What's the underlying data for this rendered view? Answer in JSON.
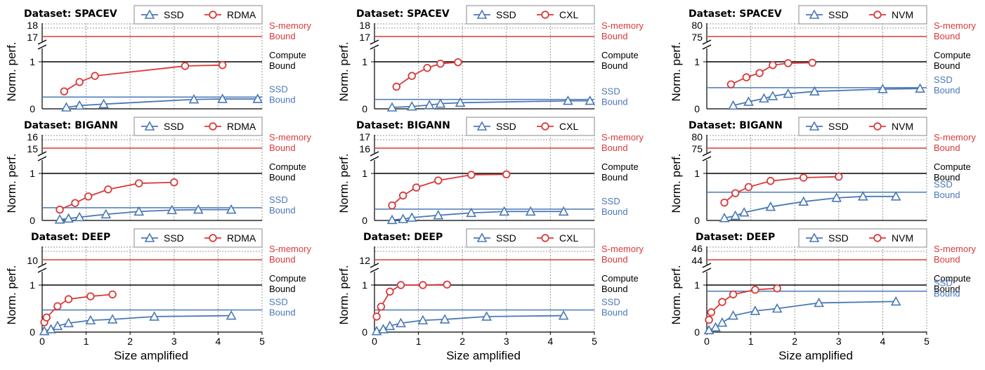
{
  "colors": {
    "ssd": "#4a78b8",
    "mem": "#d93a3a",
    "compute": "#000000",
    "grid": "#9a9a9a"
  },
  "figure": {
    "ylabel": "Norm. perf.",
    "xlabel": "Size amplified"
  },
  "chart_data": [
    {
      "type": "line",
      "title": "Dataset: SPACEV",
      "legend": [
        "SSD",
        "RDMA"
      ],
      "x_ticks": [
        "0",
        "1",
        "2",
        "3",
        "4",
        "5"
      ],
      "xlim": [
        0,
        5
      ],
      "ylim_lower": [
        0,
        1.15
      ],
      "y_ticks_lower": [
        "0",
        "1"
      ],
      "y_ticks_upper": [
        "17",
        "18"
      ],
      "s_memory_bound": 17,
      "s_memory_label": [
        "S-memory",
        "Bound"
      ],
      "compute_bound": 1,
      "compute_label": [
        "Compute",
        "Bound"
      ],
      "ssd_bound": 0.25,
      "ssd_label": [
        "SSD",
        "Bound"
      ],
      "series": [
        {
          "name": "SSD",
          "x": [
            0.55,
            0.85,
            1.4,
            3.45,
            4.1,
            4.9
          ],
          "y": [
            0.03,
            0.07,
            0.1,
            0.2,
            0.21,
            0.21
          ]
        },
        {
          "name": "RDMA",
          "x": [
            0.5,
            0.85,
            1.2,
            3.25,
            4.1
          ],
          "y": [
            0.37,
            0.57,
            0.7,
            0.91,
            0.93
          ]
        }
      ]
    },
    {
      "type": "line",
      "title": "Dataset: SPACEV",
      "legend": [
        "SSD",
        "CXL"
      ],
      "x_ticks": [
        "0",
        "1",
        "2",
        "3",
        "4",
        "5"
      ],
      "xlim": [
        0,
        5
      ],
      "ylim_lower": [
        0,
        1.15
      ],
      "y_ticks_lower": [
        "0",
        "1"
      ],
      "y_ticks_upper": [
        "17",
        "18"
      ],
      "s_memory_bound": 17,
      "s_memory_label": [
        "S-memory",
        "Bound"
      ],
      "compute_bound": 1,
      "compute_label": [
        "Compute",
        "Bound"
      ],
      "ssd_bound": 0.2,
      "ssd_label": [
        "SSD",
        "Bound"
      ],
      "series": [
        {
          "name": "SSD",
          "x": [
            0.4,
            0.85,
            1.25,
            1.5,
            1.95,
            4.4,
            4.9
          ],
          "y": [
            0.03,
            0.05,
            0.08,
            0.11,
            0.13,
            0.17,
            0.17
          ]
        },
        {
          "name": "CXL",
          "x": [
            0.5,
            0.85,
            1.2,
            1.5,
            1.9
          ],
          "y": [
            0.47,
            0.7,
            0.87,
            0.96,
            0.99
          ]
        }
      ]
    },
    {
      "type": "line",
      "title": "Dataset: SPACEV",
      "legend": [
        "SSD",
        "NVM"
      ],
      "x_ticks": [
        "0",
        "1",
        "2",
        "3",
        "4",
        "5"
      ],
      "xlim": [
        0,
        5
      ],
      "ylim_lower": [
        0,
        1.15
      ],
      "y_ticks_lower": [
        "0",
        "1"
      ],
      "y_ticks_upper": [
        "75",
        "80"
      ],
      "s_memory_bound": 75,
      "s_memory_label": [
        "S-memory",
        "Bound"
      ],
      "compute_bound": 1,
      "compute_label": [
        "Compute",
        "Bound"
      ],
      "ssd_bound": 0.45,
      "ssd_label": [
        "SSD",
        "Bound"
      ],
      "series": [
        {
          "name": "SSD",
          "x": [
            0.6,
            0.95,
            1.3,
            1.5,
            1.85,
            2.45,
            4.0,
            4.85
          ],
          "y": [
            0.07,
            0.15,
            0.22,
            0.27,
            0.32,
            0.37,
            0.42,
            0.43
          ]
        },
        {
          "name": "NVM",
          "x": [
            0.55,
            0.9,
            1.2,
            1.5,
            1.85,
            2.4
          ],
          "y": [
            0.52,
            0.67,
            0.76,
            0.93,
            0.97,
            0.98
          ]
        }
      ]
    },
    {
      "type": "line",
      "title": "Dataset: BIGANN",
      "legend": [
        "SSD",
        "RDMA"
      ],
      "x_ticks": [
        "0",
        "1",
        "2",
        "3",
        "4",
        "5"
      ],
      "xlim": [
        0,
        5
      ],
      "ylim_lower": [
        0,
        1.15
      ],
      "y_ticks_lower": [
        "0",
        "1"
      ],
      "y_ticks_upper": [
        "15",
        "16"
      ],
      "s_memory_bound": 15,
      "s_memory_label": [
        "S-memory",
        "Bound"
      ],
      "compute_bound": 1,
      "compute_label": [
        "Compute",
        "Bound"
      ],
      "ssd_bound": 0.27,
      "ssd_label": [
        "SSD",
        "Bound"
      ],
      "series": [
        {
          "name": "SSD",
          "x": [
            0.4,
            0.6,
            0.85,
            1.45,
            2.2,
            2.95,
            3.55,
            4.3
          ],
          "y": [
            0.02,
            0.04,
            0.07,
            0.13,
            0.19,
            0.22,
            0.23,
            0.23
          ]
        },
        {
          "name": "RDMA",
          "x": [
            0.4,
            0.75,
            1.05,
            1.5,
            2.2,
            3.0
          ],
          "y": [
            0.23,
            0.37,
            0.51,
            0.66,
            0.79,
            0.81
          ]
        }
      ]
    },
    {
      "type": "line",
      "title": "Dataset: BIGANN",
      "legend": [
        "SSD",
        "CXL"
      ],
      "x_ticks": [
        "0",
        "1",
        "2",
        "3",
        "4",
        "5"
      ],
      "xlim": [
        0,
        5
      ],
      "ylim_lower": [
        0,
        1.15
      ],
      "y_ticks_lower": [
        "0",
        "1"
      ],
      "y_ticks_upper": [
        "16",
        "17"
      ],
      "s_memory_bound": 16,
      "s_memory_label": [
        "S-memory",
        "Bound"
      ],
      "compute_bound": 1,
      "compute_label": [
        "Compute",
        "Bound"
      ],
      "ssd_bound": 0.24,
      "ssd_label": [
        "SSD",
        "Bound"
      ],
      "series": [
        {
          "name": "SSD",
          "x": [
            0.4,
            0.65,
            0.85,
            1.45,
            2.2,
            2.95,
            3.55,
            4.3
          ],
          "y": [
            0.01,
            0.03,
            0.06,
            0.11,
            0.16,
            0.19,
            0.19,
            0.19
          ]
        },
        {
          "name": "CXL",
          "x": [
            0.4,
            0.65,
            0.95,
            1.45,
            2.2,
            3.0
          ],
          "y": [
            0.32,
            0.53,
            0.7,
            0.85,
            0.97,
            0.98
          ]
        }
      ]
    },
    {
      "type": "line",
      "title": "Dataset: BIGANN",
      "legend": [
        "SSD",
        "NVM"
      ],
      "x_ticks": [
        "0",
        "1",
        "2",
        "3",
        "4",
        "5"
      ],
      "xlim": [
        0,
        5
      ],
      "ylim_lower": [
        0,
        1.15
      ],
      "y_ticks_lower": [
        "0",
        "1"
      ],
      "y_ticks_upper": [
        "75",
        "80"
      ],
      "s_memory_bound": 75,
      "s_memory_label": [
        "S-memory",
        "Bound"
      ],
      "compute_bound": 1,
      "compute_label": [
        "Compute",
        "Bound"
      ],
      "ssd_bound": 0.6,
      "ssd_label": [
        "SSD",
        "Bound"
      ],
      "series": [
        {
          "name": "SSD",
          "x": [
            0.4,
            0.65,
            0.85,
            1.45,
            2.2,
            2.95,
            3.55,
            4.3
          ],
          "y": [
            0.05,
            0.1,
            0.17,
            0.29,
            0.4,
            0.48,
            0.51,
            0.51
          ]
        },
        {
          "name": "NVM",
          "x": [
            0.4,
            0.65,
            0.95,
            1.45,
            2.2,
            3.0
          ],
          "y": [
            0.38,
            0.58,
            0.71,
            0.84,
            0.91,
            0.93
          ]
        }
      ]
    },
    {
      "type": "line",
      "title": "Dataset: DEEP",
      "legend": [
        "SSD",
        "RDMA"
      ],
      "x_ticks": [
        "0",
        "1",
        "2",
        "3",
        "4",
        "5"
      ],
      "xlim": [
        0,
        5
      ],
      "ylim_lower": [
        0,
        1.15
      ],
      "y_ticks_lower": [
        "0",
        "1"
      ],
      "y_ticks_upper": [
        "10"
      ],
      "s_memory_bound": 10,
      "s_memory_label": [
        "S-memory",
        "Bound"
      ],
      "compute_bound": 1,
      "compute_label": [
        "Compute",
        "Bound"
      ],
      "ssd_bound": 0.47,
      "ssd_label": [
        "SSD",
        "Bound"
      ],
      "series": [
        {
          "name": "SSD",
          "x": [
            0.05,
            0.2,
            0.35,
            0.6,
            1.1,
            1.6,
            2.55,
            4.3
          ],
          "y": [
            0.02,
            0.06,
            0.13,
            0.19,
            0.25,
            0.27,
            0.33,
            0.35
          ]
        },
        {
          "name": "RDMA",
          "x": [
            0.05,
            0.1,
            0.35,
            0.6,
            1.1,
            1.6
          ],
          "y": [
            0.21,
            0.31,
            0.55,
            0.7,
            0.76,
            0.8
          ]
        }
      ]
    },
    {
      "type": "line",
      "title": "Dataset: DEEP",
      "legend": [
        "SSD",
        "CXL"
      ],
      "x_ticks": [
        "0",
        "1",
        "2",
        "3",
        "4",
        "5"
      ],
      "xlim": [
        0,
        5
      ],
      "ylim_lower": [
        0,
        1.15
      ],
      "y_ticks_lower": [
        "0",
        "1"
      ],
      "y_ticks_upper": [
        "12"
      ],
      "s_memory_bound": 12,
      "s_memory_label": [
        "S-memory",
        "Bound"
      ],
      "compute_bound": 1,
      "compute_label": [
        "Compute",
        "Bound"
      ],
      "ssd_bound": 0.47,
      "ssd_label": [
        "SSD",
        "Bound"
      ],
      "series": [
        {
          "name": "SSD",
          "x": [
            0.05,
            0.2,
            0.35,
            0.6,
            1.1,
            1.6,
            2.55,
            4.3
          ],
          "y": [
            0.02,
            0.06,
            0.13,
            0.19,
            0.25,
            0.27,
            0.33,
            0.35
          ]
        },
        {
          "name": "CXL",
          "x": [
            0.05,
            0.15,
            0.35,
            0.6,
            1.1,
            1.65
          ],
          "y": [
            0.33,
            0.54,
            0.86,
            1.0,
            1.0,
            1.01
          ]
        }
      ]
    },
    {
      "type": "line",
      "title": "Dataset: DEEP",
      "legend": [
        "SSD",
        "NVM"
      ],
      "x_ticks": [
        "0",
        "1",
        "2",
        "3",
        "4",
        "5"
      ],
      "xlim": [
        0,
        5
      ],
      "ylim_lower": [
        0,
        1.15
      ],
      "y_ticks_lower": [
        "0",
        "1"
      ],
      "y_ticks_upper": [
        "44",
        "46"
      ],
      "s_memory_bound": 44,
      "s_memory_label": [
        "S-memory",
        "Bound"
      ],
      "compute_bound": 1,
      "compute_label": [
        "Compute",
        "Bound"
      ],
      "ssd_bound": 0.87,
      "ssd_label": [
        "SSD",
        "Bound"
      ],
      "series": [
        {
          "name": "SSD",
          "x": [
            0.05,
            0.2,
            0.35,
            0.6,
            1.1,
            1.6,
            2.55,
            4.3
          ],
          "y": [
            0.04,
            0.1,
            0.2,
            0.35,
            0.45,
            0.5,
            0.62,
            0.65
          ]
        },
        {
          "name": "NVM",
          "x": [
            0.05,
            0.1,
            0.35,
            0.6,
            1.1,
            1.6
          ],
          "y": [
            0.26,
            0.42,
            0.64,
            0.8,
            0.9,
            0.93
          ]
        }
      ]
    }
  ]
}
